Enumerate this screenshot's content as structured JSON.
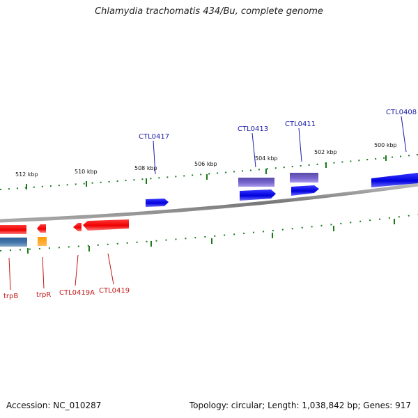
{
  "title": "Chlamydia trachomatis 434/Bu, complete genome",
  "footer": {
    "accession": "Accession: NC_010287",
    "summary": "Topology: circular; Length: 1,038,842 bp; Genes: 917"
  },
  "scale_labels": [
    "512 kbp",
    "510 kbp",
    "508 kbp",
    "506 kbp",
    "504 kbp",
    "502 kbp",
    "500 kbp"
  ],
  "genes_top": [
    {
      "name": "CTL0417",
      "color": "#0000dd"
    },
    {
      "name": "CTL0413",
      "color": "#0000dd"
    },
    {
      "name": "CTL0411",
      "color": "#0000dd"
    },
    {
      "name": "CTL0408",
      "color": "#0000dd"
    }
  ],
  "genes_bottom": [
    {
      "name": "trpB",
      "color": "#ee0000"
    },
    {
      "name": "trpR",
      "color": "#ee0000"
    },
    {
      "name": "CTL0419A",
      "color": "#ee0000"
    },
    {
      "name": "CTL0419",
      "color": "#ee0000"
    }
  ],
  "colors": {
    "forward_cds": "#0000ee",
    "forward_other": "#7766cc",
    "reverse_cds": "#ee0000",
    "reverse_other": "#4477aa",
    "reverse_rna": "#ff8800",
    "tick": "#1a7a1a",
    "backbone": "#888888",
    "label_top": "#1a1aa8",
    "label_bottom": "#c01818"
  }
}
